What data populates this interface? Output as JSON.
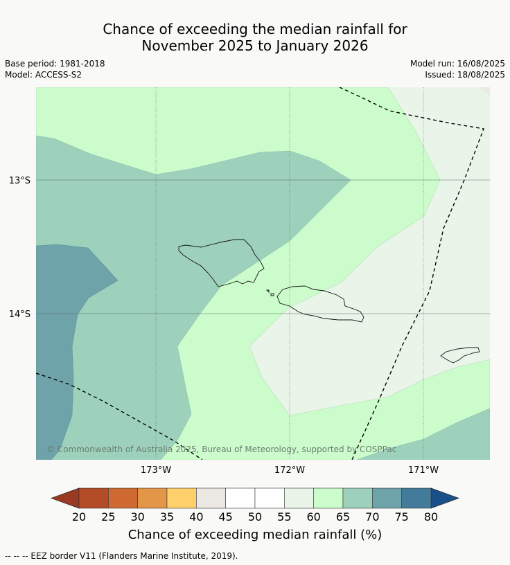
{
  "title_line1": "Chance of exceeding the median rainfall for",
  "title_line2": "November 2025 to January 2026",
  "base_period": "Base period: 1981-2018",
  "model": "Model: ACCESS-S2",
  "model_run": "Model run: 16/08/2025",
  "issued": "Issued: 18/08/2025",
  "map": {
    "lat_labels": [
      "13°S",
      "14°S"
    ],
    "lon_labels": [
      "173°W",
      "172°W",
      "171°W"
    ],
    "copyright": "© Commonwealth of Australia 2025, Bureau of Meteorology, supported by COSPPac",
    "category_colors": {
      "40-45": "#ece9e5",
      "55-60": "#eaf5ea",
      "60-65": "#ccfccc",
      "65-70": "#9dd1bb",
      "70-75": "#6ea3a9"
    }
  },
  "colorbar": {
    "ticks": [
      "20",
      "25",
      "30",
      "35",
      "40",
      "45",
      "50",
      "55",
      "60",
      "65",
      "70",
      "75",
      "80"
    ],
    "colors": [
      "#b34d27",
      "#d06a33",
      "#e39647",
      "#fdd06b",
      "#ece9e5",
      "#ffffff",
      "#ffffff",
      "#eaf5ea",
      "#ccfccc",
      "#9dd1bb",
      "#6ea3a9",
      "#427c9a"
    ],
    "under_color": "#9a3a22",
    "over_color": "#1b4f87",
    "title": "Chance of exceeding median rainfall (%)"
  },
  "footnote": "--  --  -- EEZ border V11 (Flanders Marine Institute, 2019)."
}
